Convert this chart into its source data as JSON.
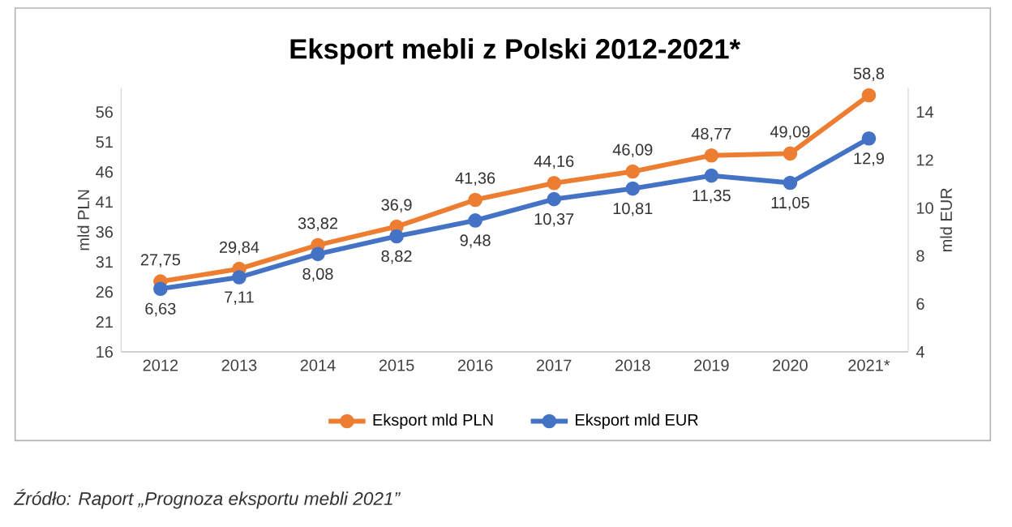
{
  "chart_data": {
    "type": "line",
    "title": "Eksport mebli z Polski 2012-2021*",
    "categories": [
      "2012",
      "2013",
      "2014",
      "2015",
      "2016",
      "2017",
      "2018",
      "2019",
      "2020",
      "2021*"
    ],
    "series": [
      {
        "name": "Eksport mld PLN",
        "color": "#ed7d31",
        "values": [
          27.75,
          29.84,
          33.82,
          36.9,
          41.36,
          44.16,
          46.09,
          48.77,
          49.09,
          58.8
        ],
        "value_labels": [
          "27,75",
          "29,84",
          "33,82",
          "36,9",
          "41,36",
          "44,16",
          "46,09",
          "48,77",
          "49,09",
          "58,8"
        ]
      },
      {
        "name": "Eksport mld EUR",
        "color": "#4472c4",
        "axis": "y2",
        "values": [
          6.63,
          7.11,
          8.08,
          8.82,
          9.48,
          10.37,
          10.81,
          11.35,
          11.05,
          12.9
        ],
        "value_labels": [
          "6,63",
          "7,11",
          "8,08",
          "8,82",
          "9,48",
          "10,37",
          "10,81",
          "11,35",
          "11,05",
          "12,9"
        ]
      }
    ],
    "ylabel": "mld PLN",
    "y2label": "mld EUR",
    "ylim": [
      16,
      60
    ],
    "yticks": [
      16,
      21,
      26,
      31,
      36,
      41,
      46,
      51,
      56
    ],
    "y2lim": [
      4,
      15
    ],
    "y2ticks": [
      4,
      6,
      8,
      10,
      12,
      14
    ],
    "marker": "circle",
    "line_style": "solid",
    "legend": "bottom",
    "grid": false,
    "annotations": [
      "Źródło: Raport „Prognoza eksportu mebli 2021”"
    ]
  }
}
